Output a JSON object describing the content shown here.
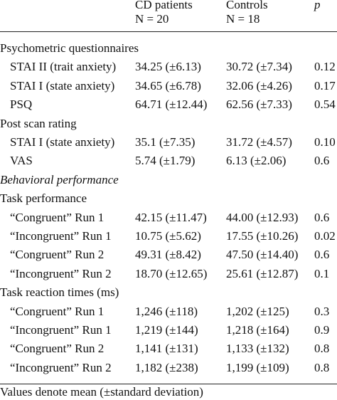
{
  "table": {
    "columns": [
      {
        "name": "CD patients",
        "n": "N = 20"
      },
      {
        "name": "Controls",
        "n": "N = 18"
      },
      {
        "name": "p"
      }
    ],
    "rows": [
      {
        "label": "Psychometric questionnaires"
      },
      {
        "label": "STAI II (trait anxiety)",
        "cells": [
          "34.25 (±6.13)",
          "30.72 (±7.34)",
          "0.12"
        ]
      },
      {
        "label": "STAI I (state anxiety)",
        "cells": [
          "34.65 (±6.78)",
          "32.06 (±4.26)",
          "0.17"
        ]
      },
      {
        "label": "PSQ",
        "cells": [
          "64.71 (±12.44)",
          "62.56 (±7.33)",
          "0.54"
        ]
      },
      {
        "label": "Post scan rating"
      },
      {
        "label": "STAI I (state anxiety)",
        "cells": [
          "35.1 (±7.35)",
          "31.72 (±4.57)",
          "0.10"
        ]
      },
      {
        "label": "VAS",
        "cells": [
          "5.74 (±1.79)",
          "6.13 (±2.06)",
          "0.6"
        ]
      },
      {
        "label": "Behavioral performance",
        "italic": true
      },
      {
        "label": "Task performance"
      },
      {
        "label": "“Congruent” Run 1",
        "cells": [
          "42.15 (±11.47)",
          "44.00 (±12.93)",
          "0.6"
        ]
      },
      {
        "label": "“Incongruent” Run 1",
        "cells": [
          "10.75 (±5.62)",
          "17.55 (±10.26)",
          "0.02"
        ]
      },
      {
        "label": "“Congruent” Run 2",
        "cells": [
          "49.31 (±8.42)",
          "47.50 (±14.40)",
          "0.6"
        ]
      },
      {
        "label": "“Incongruent” Run 2",
        "cells": [
          "18.70 (±12.65)",
          "25.61 (±12.87)",
          "0.1"
        ]
      },
      {
        "label": "Task reaction times (ms)"
      },
      {
        "label": "“Congruent” Run 1",
        "cells": [
          "1,246 (±118)",
          "1,202 (±125)",
          "0.3"
        ]
      },
      {
        "label": "“Incongruent” Run 1",
        "cells": [
          "1,219 (±144)",
          "1,218 (±164)",
          "0.9"
        ]
      },
      {
        "label": "“Congruent” Run 2",
        "cells": [
          "1,141 (±131)",
          "1,133 (±132)",
          "0.8"
        ]
      },
      {
        "label": "“Incongruent” Run 2",
        "cells": [
          "1,182 (±238)",
          "1,199 (±109)",
          "0.8"
        ]
      }
    ],
    "note": "Values denote mean (±standard deviation)"
  }
}
